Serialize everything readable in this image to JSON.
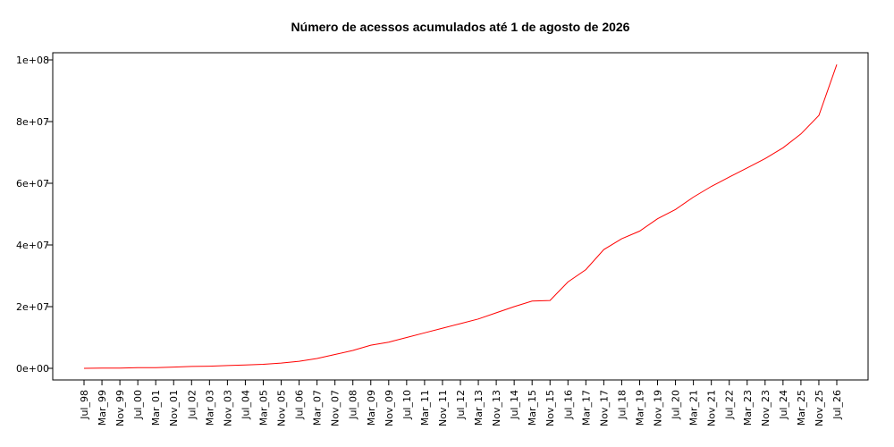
{
  "chart_data": {
    "type": "line",
    "title": "Número de acessos acumulados até 1 de agosto de 2026",
    "xlabel": "",
    "ylabel": "",
    "ylim": [
      0,
      100000000
    ],
    "y_ticks": [
      {
        "value": 0,
        "label": "0e+00"
      },
      {
        "value": 20000000,
        "label": "2e+07"
      },
      {
        "value": 40000000,
        "label": "4e+07"
      },
      {
        "value": 60000000,
        "label": "6e+07"
      },
      {
        "value": 80000000,
        "label": "8e+07"
      },
      {
        "value": 100000000,
        "label": "1e+08"
      }
    ],
    "x_ticks": [
      "Jul_98",
      "Mar_99",
      "Nov_99",
      "Jul_00",
      "Mar_01",
      "Nov_01",
      "Jul_02",
      "Mar_03",
      "Nov_03",
      "Jul_04",
      "Mar_05",
      "Nov_05",
      "Jul_06",
      "Mar_07",
      "Nov_07",
      "Jul_08",
      "Mar_09",
      "Nov_09",
      "Jul_10",
      "Mar_11",
      "Nov_11",
      "Jul_12",
      "Mar_13",
      "Nov_13",
      "Jul_14",
      "Mar_15",
      "Nov_15",
      "Jul_16",
      "Mar_17",
      "Nov_17",
      "Jul_18",
      "Mar_19",
      "Nov_19",
      "Jul_20",
      "Mar_21",
      "Nov_21",
      "Jul_22",
      "Mar_23",
      "Nov_23",
      "Jul_24",
      "Mar_25",
      "Nov_25",
      "Jul_26"
    ],
    "grid": false,
    "line_color": "#ff0000",
    "series": [
      {
        "x": [
          "Jul_98",
          "Mar_99",
          "Nov_99",
          "Jul_00",
          "Mar_01",
          "Nov_01",
          "Jul_02",
          "Mar_03",
          "Nov_03",
          "Jul_04",
          "Mar_05",
          "Nov_05",
          "Jul_06",
          "Mar_07",
          "Nov_07",
          "Jul_08",
          "Mar_09",
          "Nov_09",
          "Jul_10",
          "Mar_11",
          "Nov_11",
          "Jul_12",
          "Mar_13",
          "Nov_13",
          "Jul_14",
          "Mar_15",
          "Nov_15",
          "Jul_16",
          "Mar_17",
          "Nov_17",
          "Jul_18",
          "Mar_19",
          "Nov_19",
          "Jul_20",
          "Mar_21",
          "Nov_21",
          "Jul_22",
          "Mar_23",
          "Nov_23",
          "Jul_24",
          "Mar_25",
          "Nov_25",
          "Jul_26"
        ],
        "values": [
          0,
          50000,
          100000,
          200000,
          200000,
          400000,
          600000,
          700000,
          900000,
          1100000,
          1300000,
          1700000,
          2300000,
          3200000,
          4500000,
          5800000,
          7500000,
          8500000,
          10000000,
          11500000,
          13000000,
          14500000,
          16000000,
          18000000,
          20000000,
          21800000,
          22000000,
          28000000,
          32000000,
          38500000,
          42000000,
          44500000,
          48500000,
          51500000,
          55500000,
          59000000,
          62000000,
          65000000,
          68000000,
          71500000,
          76000000,
          82000000,
          98500000
        ]
      }
    ]
  }
}
